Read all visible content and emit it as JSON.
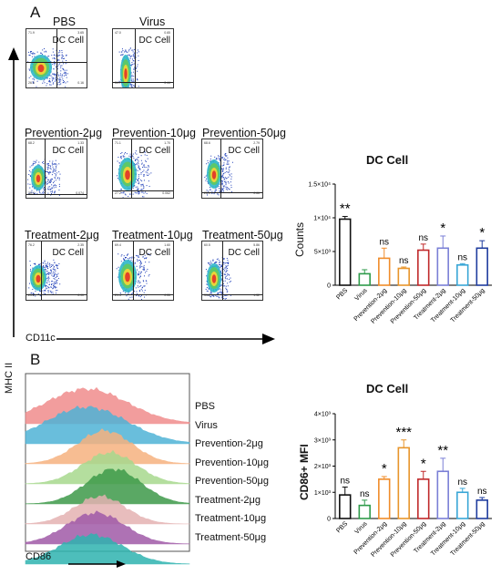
{
  "panel_a": {
    "letter": "A",
    "dc_label": "DC Cell",
    "y_axis_label": "MHC II",
    "x_axis_label": "CD11c",
    "plots": [
      {
        "title": "PBS",
        "q": [
          "71.9",
          "3.65",
          "26.3",
          "0.16"
        ]
      },
      {
        "title": "Virus",
        "q": [
          "47.0",
          "0.65",
          "51.7",
          "0.44"
        ]
      },
      {
        "title": "Prevention-2μg",
        "q": [
          "68.2",
          "1.33",
          "30.4",
          "0.074"
        ]
      },
      {
        "title": "Prevention-10μg",
        "q": [
          "71.1",
          "1.70",
          "27.2",
          "0.062"
        ]
      },
      {
        "title": "Prevention-50μg",
        "q": [
          "68.6",
          "2.79",
          "25.0",
          "0.66"
        ]
      },
      {
        "title": "Treatment-2μg",
        "q": [
          "76.2",
          "2.35",
          "21.1",
          "0.90"
        ]
      },
      {
        "title": "Treatment-10μg",
        "q": [
          "69.4",
          "1.60",
          "29.4",
          "0.55"
        ]
      },
      {
        "title": "Treatment-50μg",
        "q": [
          "60.5",
          "5.86",
          "30.8",
          "1.32"
        ]
      }
    ]
  },
  "panel_b": {
    "letter": "B",
    "x_axis_label": "CD86",
    "histograms": [
      {
        "label": "PBS",
        "color": "#f08c8c"
      },
      {
        "label": "Virus",
        "color": "#4fb3d6"
      },
      {
        "label": "Prevention-2μg",
        "color": "#f6b27f"
      },
      {
        "label": "Prevention-10μg",
        "color": "#a7d98e"
      },
      {
        "label": "Prevention-50μg",
        "color": "#3e9a4a"
      },
      {
        "label": "Treatment-2μg",
        "color": "#e4b2b2"
      },
      {
        "label": "Treatment-10μg",
        "color": "#a05aa8"
      },
      {
        "label": "Treatment-50μg",
        "color": "#2fb3b0"
      }
    ]
  },
  "chart_data": [
    {
      "type": "bar",
      "title": "DC Cell",
      "ylabel": "Counts",
      "ylim": [
        0,
        15000
      ],
      "yticks": [
        0,
        5000,
        10000,
        15000
      ],
      "ytick_labels": [
        "0",
        "5×10³",
        "1×10⁴",
        "1.5×10⁴"
      ],
      "categories": [
        "PBS",
        "Virus",
        "Prevention-2μg",
        "Prevention-10μg",
        "Prevention-50μg",
        "Treatment-2μg",
        "Treatment-10μg",
        "Treatment-50μg"
      ],
      "values": [
        9800,
        1700,
        4000,
        2500,
        5200,
        5500,
        3000,
        5500
      ],
      "errors": [
        400,
        600,
        1500,
        200,
        900,
        1800,
        200,
        1100
      ],
      "significance": [
        "**",
        "",
        "ns",
        "ns",
        "ns",
        "*",
        "ns",
        "*"
      ],
      "colors": [
        "#111111",
        "#2e9b4a",
        "#f08c2a",
        "#e8952b",
        "#c0282a",
        "#7a7fd6",
        "#39a6d6",
        "#1f3c9e"
      ]
    },
    {
      "type": "bar",
      "title": "DC Cell",
      "ylabel": "CD86+ MFI",
      "ylim": [
        0,
        4000
      ],
      "yticks": [
        0,
        1000,
        2000,
        3000,
        4000
      ],
      "ytick_labels": [
        "0",
        "1×10³",
        "2×10³",
        "3×10³",
        "4×10³"
      ],
      "categories": [
        "PBS",
        "Virus",
        "Prevention-2μg",
        "Prevention-10μg",
        "Prevention-50μg",
        "Treatment-2μg",
        "Treatment-10μg",
        "Treatment-50μg"
      ],
      "values": [
        900,
        500,
        1500,
        2700,
        1500,
        1800,
        1000,
        700
      ],
      "errors": [
        300,
        200,
        100,
        300,
        300,
        500,
        150,
        100
      ],
      "significance": [
        "ns",
        "ns",
        "*",
        "***",
        "*",
        "**",
        "ns",
        "ns"
      ],
      "colors": [
        "#111111",
        "#2e9b4a",
        "#f08c2a",
        "#e8952b",
        "#c0282a",
        "#7a7fd6",
        "#39a6d6",
        "#1f3c9e"
      ]
    }
  ]
}
